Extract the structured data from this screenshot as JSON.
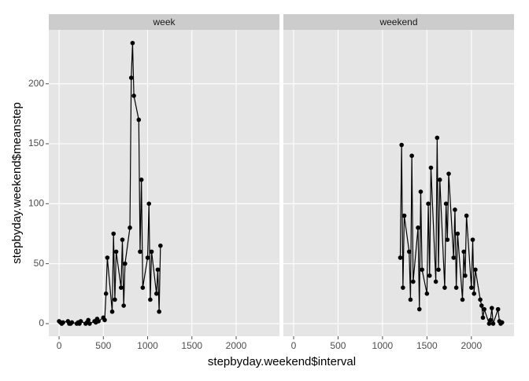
{
  "chart_data": [
    {
      "type": "line",
      "title": "week",
      "xlabel": "stepbyday.weekend$interval",
      "ylabel": "stepbyday.weekend$meanstep",
      "color": "#000000",
      "grid": true,
      "x": [
        0,
        15,
        30,
        45,
        100,
        115,
        130,
        145,
        200,
        215,
        230,
        245,
        300,
        315,
        330,
        345,
        400,
        415,
        430,
        445,
        500,
        515,
        530,
        545,
        600,
        615,
        630,
        645,
        700,
        715,
        730,
        745,
        800,
        815,
        830,
        845,
        900,
        915,
        930,
        945,
        1000,
        1015,
        1030,
        1045,
        1100,
        1115,
        1130,
        1145
      ],
      "values": [
        2,
        1,
        0,
        1,
        2,
        0,
        0,
        1,
        0,
        1,
        0,
        2,
        0,
        1,
        3,
        0,
        2,
        1,
        4,
        2,
        5,
        3,
        25,
        55,
        10,
        75,
        20,
        60,
        30,
        70,
        15,
        50,
        80,
        205,
        234,
        190,
        170,
        60,
        120,
        30,
        55,
        100,
        20,
        60,
        25,
        45,
        10,
        65
      ],
      "xlim": [
        -116,
        2489
      ],
      "xticks": [
        0,
        500,
        1000,
        1500,
        2000
      ],
      "ylim": [
        -10.5,
        245
      ],
      "yticks": [
        0,
        50,
        100,
        150,
        200
      ]
    },
    {
      "type": "line",
      "title": "weekend",
      "color": "#000000",
      "grid": true,
      "x": [
        1200,
        1215,
        1230,
        1245,
        1300,
        1315,
        1330,
        1345,
        1400,
        1415,
        1430,
        1445,
        1500,
        1515,
        1530,
        1545,
        1600,
        1615,
        1630,
        1645,
        1700,
        1715,
        1730,
        1745,
        1800,
        1815,
        1830,
        1845,
        1900,
        1915,
        1930,
        1945,
        2000,
        2015,
        2030,
        2045,
        2100,
        2115,
        2130,
        2145,
        2200,
        2215,
        2230,
        2245,
        2300,
        2315,
        2330,
        2345
      ],
      "values": [
        55,
        149,
        30,
        90,
        60,
        20,
        140,
        35,
        80,
        12,
        110,
        45,
        25,
        100,
        40,
        130,
        35,
        155,
        45,
        120,
        30,
        100,
        70,
        125,
        55,
        95,
        30,
        75,
        20,
        60,
        40,
        90,
        30,
        70,
        25,
        45,
        20,
        15,
        5,
        12,
        0,
        3,
        13,
        0,
        12,
        2,
        0,
        1
      ],
      "xlim": [
        -115,
        2480
      ],
      "xticks": [
        0,
        500,
        1000,
        1500,
        2000
      ],
      "ylim": [
        -10.5,
        245
      ],
      "yticks": [
        0,
        50,
        100,
        150,
        200
      ]
    }
  ]
}
